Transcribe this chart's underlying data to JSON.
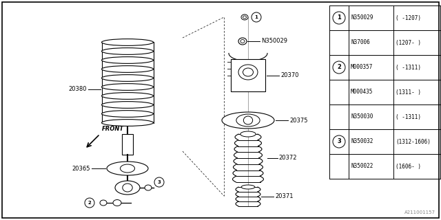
{
  "background_color": "#ffffff",
  "watermark": "A211001157",
  "table": {
    "circles": {
      "0": "1",
      "2": "2",
      "5": "3"
    },
    "col2": [
      "N350029",
      "N37006",
      "M000357",
      "M000435",
      "N350030",
      "N350032",
      "N350022"
    ],
    "col3": [
      "( -1207)",
      "(1207- )",
      "( -1311)",
      "(1311- )",
      "( -1311)",
      "(1312-1606)",
      "(1606- )"
    ]
  }
}
